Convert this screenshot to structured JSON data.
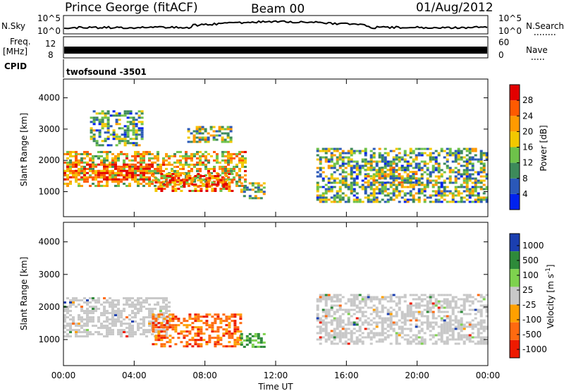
{
  "header": {
    "station": "Prince George (fitACF)",
    "beam": "Beam 00",
    "date": "01/Aug/2012"
  },
  "strip_labels": {
    "nsky": "N.Sky",
    "nsearch": "N.Search",
    "freq_l1": "Freq.",
    "freq_l2": "[MHz]",
    "nave": "Nave",
    "cpid": "CPID",
    "cpid_value": "twofsound -3501",
    "nsky_ticks": [
      "10^5",
      "10^0"
    ],
    "nsearch_ticks": [
      "10^5",
      "10^0"
    ],
    "freq_ticks": [
      "12",
      "8"
    ],
    "nave_ticks": [
      "60",
      "0"
    ]
  },
  "colors": {
    "power_scale": [
      "#0022ee",
      "#2a58b8",
      "#3d8a5a",
      "#6ec24a",
      "#f2c800",
      "#ff9a00",
      "#ff5a00",
      "#e30000"
    ],
    "velocity_scale": [
      "#1b3fb0",
      "#2e8a3a",
      "#7ed24e",
      "#c8c8c8",
      "#ffa000",
      "#ff6a10",
      "#ee1a00"
    ]
  },
  "chart_data": [
    {
      "type": "heatmap",
      "name": "power-panel",
      "xlabel": "",
      "ylabel": "Slant Range [km]",
      "x_range_hours": [
        0,
        24
      ],
      "ylim": [
        200,
        4600
      ],
      "y_ticks": [
        1000,
        2000,
        3000,
        4000
      ],
      "colorbar": {
        "label": "Power [dB]",
        "ticks": [
          4,
          8,
          12,
          16,
          20,
          24,
          28
        ]
      },
      "echo_regions": [
        {
          "x0": 0.0,
          "x1": 10.3,
          "y0": 1200,
          "y1": 2300,
          "level": 0.7
        },
        {
          "x0": 0.0,
          "x1": 5.0,
          "y0": 1400,
          "y1": 1900,
          "level": 1.0
        },
        {
          "x0": 5.0,
          "x1": 9.5,
          "y0": 1000,
          "y1": 1600,
          "level": 0.85
        },
        {
          "x0": 1.5,
          "x1": 4.5,
          "y0": 2500,
          "y1": 3600,
          "level": 0.4
        },
        {
          "x0": 7.0,
          "x1": 9.5,
          "y0": 2600,
          "y1": 3100,
          "level": 0.55
        },
        {
          "x0": 10.0,
          "x1": 11.3,
          "y0": 800,
          "y1": 1300,
          "level": 0.5
        },
        {
          "x0": 14.3,
          "x1": 24.0,
          "y0": 700,
          "y1": 2400,
          "level": 0.45
        },
        {
          "x0": 17.0,
          "x1": 20.0,
          "y0": 1300,
          "y1": 1800,
          "level": 0.6
        }
      ]
    },
    {
      "type": "heatmap",
      "name": "velocity-panel",
      "xlabel": "Time UT",
      "ylabel": "Slant Range [km]",
      "x_range_hours": [
        0,
        24
      ],
      "x_ticks": [
        "00:00",
        "04:00",
        "08:00",
        "12:00",
        "16:00",
        "20:00",
        "00:00"
      ],
      "ylim": [
        200,
        4600
      ],
      "y_ticks": [
        1000,
        2000,
        3000,
        4000
      ],
      "colorbar": {
        "label": "Velocity [m s^-1]",
        "ticks": [
          1000,
          500,
          100,
          25,
          -25,
          -100,
          -500,
          -1000
        ]
      },
      "echo_regions": [
        {
          "x0": 0.0,
          "x1": 6.0,
          "y0": 1100,
          "y1": 2300,
          "kind": "ground"
        },
        {
          "x0": 5.0,
          "x1": 10.0,
          "y0": 800,
          "y1": 1800,
          "kind": "away"
        },
        {
          "x0": 10.0,
          "x1": 11.3,
          "y0": 800,
          "y1": 1200,
          "kind": "toward"
        },
        {
          "x0": 14.3,
          "x1": 24.0,
          "y0": 900,
          "y1": 2400,
          "kind": "ground"
        }
      ]
    }
  ]
}
